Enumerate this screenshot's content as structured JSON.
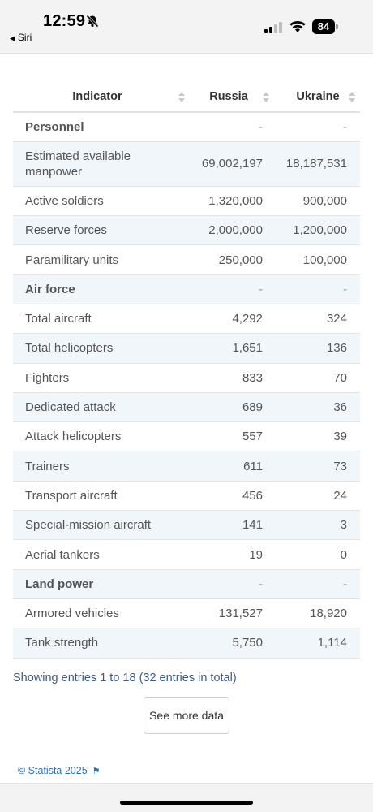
{
  "status_bar": {
    "time": "12:59",
    "back_label": "Siri",
    "battery": "84"
  },
  "table": {
    "headers": [
      "Indicator",
      "Russia",
      "Ukraine"
    ],
    "rows": [
      {
        "indicator": "Personnel",
        "russia": "-",
        "ukraine": "-",
        "group": true
      },
      {
        "indicator": "Estimated available manpower",
        "russia": "69,002,197",
        "ukraine": "18,187,531"
      },
      {
        "indicator": "Active soldiers",
        "russia": "1,320,000",
        "ukraine": "900,000"
      },
      {
        "indicator": "Reserve forces",
        "russia": "2,000,000",
        "ukraine": "1,200,000"
      },
      {
        "indicator": "Paramilitary units",
        "russia": "250,000",
        "ukraine": "100,000"
      },
      {
        "indicator": "Air force",
        "russia": "-",
        "ukraine": "-",
        "group": true
      },
      {
        "indicator": "Total aircraft",
        "russia": "4,292",
        "ukraine": "324"
      },
      {
        "indicator": "Total helicopters",
        "russia": "1,651",
        "ukraine": "136"
      },
      {
        "indicator": "Fighters",
        "russia": "833",
        "ukraine": "70"
      },
      {
        "indicator": "Dedicated attack",
        "russia": "689",
        "ukraine": "36"
      },
      {
        "indicator": "Attack helicopters",
        "russia": "557",
        "ukraine": "39"
      },
      {
        "indicator": "Trainers",
        "russia": "611",
        "ukraine": "73"
      },
      {
        "indicator": "Transport aircraft",
        "russia": "456",
        "ukraine": "24"
      },
      {
        "indicator": "Special-mission aircraft",
        "russia": "141",
        "ukraine": "3"
      },
      {
        "indicator": "Aerial tankers",
        "russia": "19",
        "ukraine": "0"
      },
      {
        "indicator": "Land power",
        "russia": "-",
        "ukraine": "-",
        "group": true
      },
      {
        "indicator": "Armored vehicles",
        "russia": "131,527",
        "ukraine": "18,920"
      },
      {
        "indicator": "Tank strength",
        "russia": "5,750",
        "ukraine": "1,114"
      }
    ]
  },
  "footer": {
    "showing": "Showing entries 1 to 18 (32 entries in total)",
    "more_button": "See more data",
    "copyright": "© Statista 2025"
  },
  "colors": {
    "link": "#3b5b83",
    "row_alt": "#f1f6fb"
  }
}
